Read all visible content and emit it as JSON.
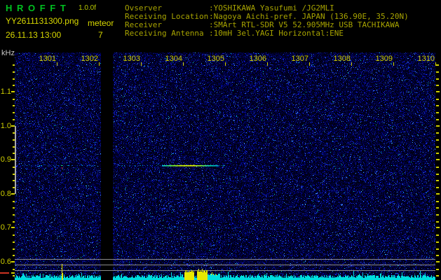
{
  "header": {
    "app_title": "H R O F F T",
    "version": "1.0.0f",
    "filename": "YY2611131300.png",
    "mode": "meteor",
    "datetime": "26.11.13 13:00",
    "echo_count": "7",
    "info_rows": [
      {
        "label": "Ovserver",
        "value": ":YOSHIKAWA Yasufumi /JG2MLI"
      },
      {
        "label": "Receiving Location",
        "value": ":Nagoya Aichi-pref. JAPAN (136.90E, 35.20N)"
      },
      {
        "label": "Receiver",
        "value": ":SMArt RTL-SDR V5 52.905MHz USB TACHIKAWA"
      },
      {
        "label": "Receiving Antenna",
        "value": ":10mH 3el.YAGI Horizontal:ENE"
      }
    ]
  },
  "axes": {
    "freq_unit": "kHz",
    "freq_major_labels": [
      "1.1",
      "1.0",
      "0.9",
      "0.8",
      "0.7",
      "0.6"
    ],
    "time_labels": [
      "1301",
      "1302",
      "1303",
      "1304",
      "1305",
      "1306",
      "1307",
      "1308",
      "1309",
      "1310"
    ]
  },
  "spectrogram": {
    "description": "10-minute radio meteor echo spectrogram, 13:00-13:10",
    "data_gap_minute": "1302",
    "meteor_echo": {
      "freq_khz": 0.89,
      "start_minute": "1303",
      "peak_minute": "1304"
    },
    "calibration_bar_khz": [
      1.0,
      0.8
    ]
  },
  "colors": {
    "title_green": "#00c020",
    "version_yellow": "#b8c800",
    "label_yellow": "#d8d800",
    "info_olive": "#a8a400",
    "axis_yellow": "#d0d000",
    "unit_white": "#c8c8c8",
    "grid_gray": "#8c8c8c",
    "cal_gray": "#a8a8a8",
    "bar_cyan": "#00dede",
    "bar_yellow": "#e8e800",
    "red_mark": "#cc3322"
  }
}
